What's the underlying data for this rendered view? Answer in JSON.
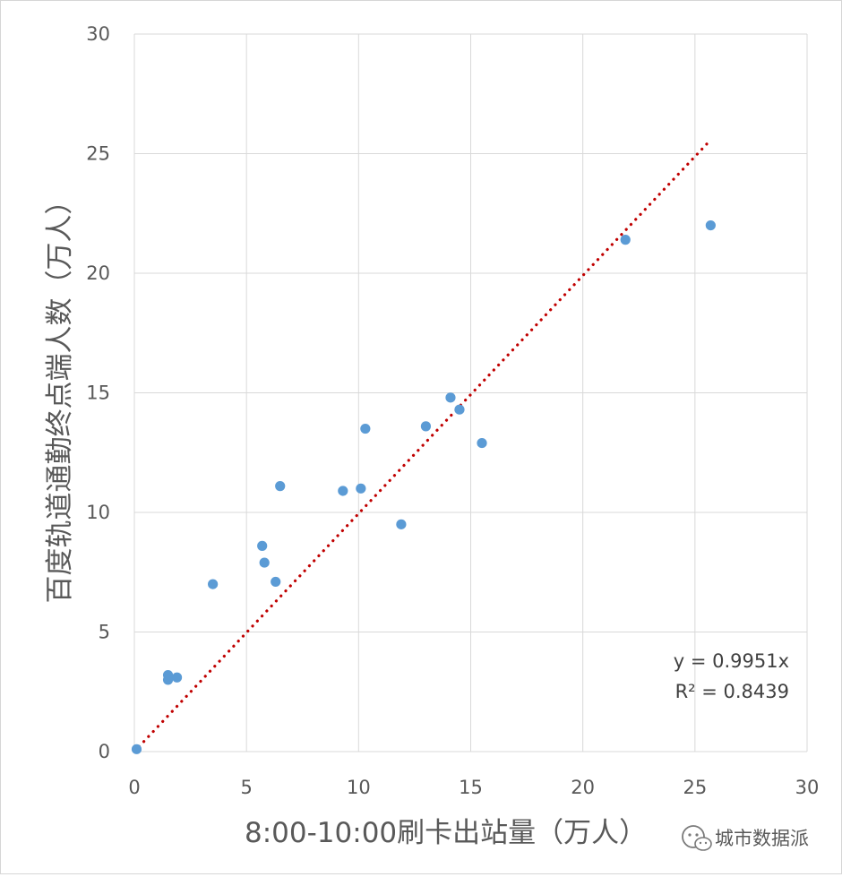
{
  "chart_data": {
    "type": "scatter",
    "title": "",
    "xlabel": "8:00-10:00刷卡出站量（万人）",
    "ylabel": "百度轨道通勤终点端人数（万人）",
    "xlim": [
      0,
      30
    ],
    "ylim": [
      0,
      30
    ],
    "x_ticks": [
      "0",
      "5",
      "10",
      "15",
      "20",
      "25",
      "30"
    ],
    "y_ticks": [
      "0",
      "5",
      "10",
      "15",
      "20",
      "25",
      "30"
    ],
    "grid": true,
    "legend": "none",
    "colors": {
      "points": "#5b9bd5",
      "trendline": "#c00000",
      "grid": "#d9d9d9",
      "text": "#595959"
    },
    "series": [
      {
        "points": [
          {
            "x": 0.1,
            "y": 0.1
          },
          {
            "x": 1.5,
            "y": 3.2
          },
          {
            "x": 1.5,
            "y": 3.0
          },
          {
            "x": 1.9,
            "y": 3.1
          },
          {
            "x": 3.5,
            "y": 7.0
          },
          {
            "x": 5.7,
            "y": 8.6
          },
          {
            "x": 5.8,
            "y": 7.9
          },
          {
            "x": 6.3,
            "y": 7.1
          },
          {
            "x": 6.5,
            "y": 11.1
          },
          {
            "x": 9.3,
            "y": 10.9
          },
          {
            "x": 10.1,
            "y": 11.0
          },
          {
            "x": 10.3,
            "y": 13.5
          },
          {
            "x": 11.9,
            "y": 9.5
          },
          {
            "x": 13.0,
            "y": 13.6
          },
          {
            "x": 14.1,
            "y": 14.8
          },
          {
            "x": 14.5,
            "y": 14.3
          },
          {
            "x": 15.5,
            "y": 12.9
          },
          {
            "x": 21.9,
            "y": 21.4
          },
          {
            "x": 25.7,
            "y": 22.0
          }
        ]
      }
    ],
    "trendline": {
      "type": "linear-through-origin",
      "slope": 0.9951,
      "x_range": [
        0,
        25.6
      ],
      "style": "dotted"
    },
    "annotations": {
      "equation": "y = 0.9951x",
      "r_squared": "R² = 0.8439"
    }
  },
  "watermark": {
    "text": "城市数据派",
    "icon": "wechat-icon"
  }
}
